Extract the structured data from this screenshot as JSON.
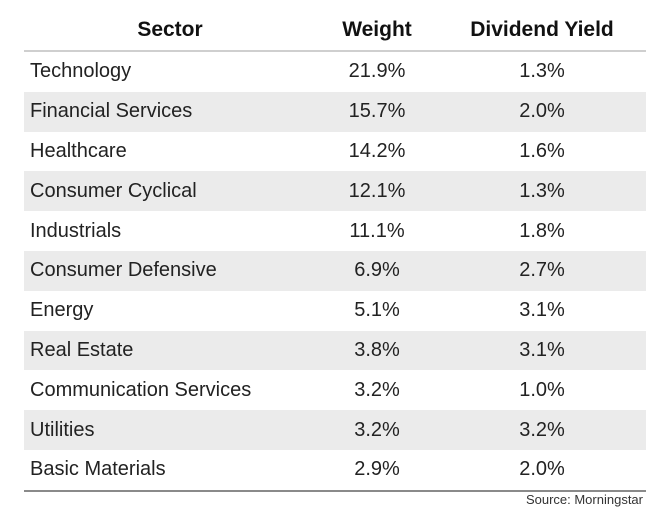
{
  "chart_data": {
    "type": "table",
    "columns": [
      "Sector",
      "Weight",
      "Dividend Yield"
    ],
    "rows": [
      {
        "sector": "Technology",
        "weight": "21.9%",
        "dividend_yield": "1.3%"
      },
      {
        "sector": "Financial Services",
        "weight": "15.7%",
        "dividend_yield": "2.0%"
      },
      {
        "sector": "Healthcare",
        "weight": "14.2%",
        "dividend_yield": "1.6%"
      },
      {
        "sector": "Consumer Cyclical",
        "weight": "12.1%",
        "dividend_yield": "1.3%"
      },
      {
        "sector": "Industrials",
        "weight": "11.1%",
        "dividend_yield": "1.8%"
      },
      {
        "sector": "Consumer Defensive",
        "weight": "6.9%",
        "dividend_yield": "2.7%"
      },
      {
        "sector": "Energy",
        "weight": "5.1%",
        "dividend_yield": "3.1%"
      },
      {
        "sector": "Real Estate",
        "weight": "3.8%",
        "dividend_yield": "3.1%"
      },
      {
        "sector": "Communication Services",
        "weight": "3.2%",
        "dividend_yield": "1.0%"
      },
      {
        "sector": "Utilities",
        "weight": "3.2%",
        "dividend_yield": "3.2%"
      },
      {
        "sector": "Basic Materials",
        "weight": "2.9%",
        "dividend_yield": "2.0%"
      }
    ],
    "source": "Source: Morningstar"
  },
  "colors": {
    "stripe": "#ebebeb",
    "header_rule": "#cfcfcf",
    "bottom_rule": "#8a8a8a"
  }
}
